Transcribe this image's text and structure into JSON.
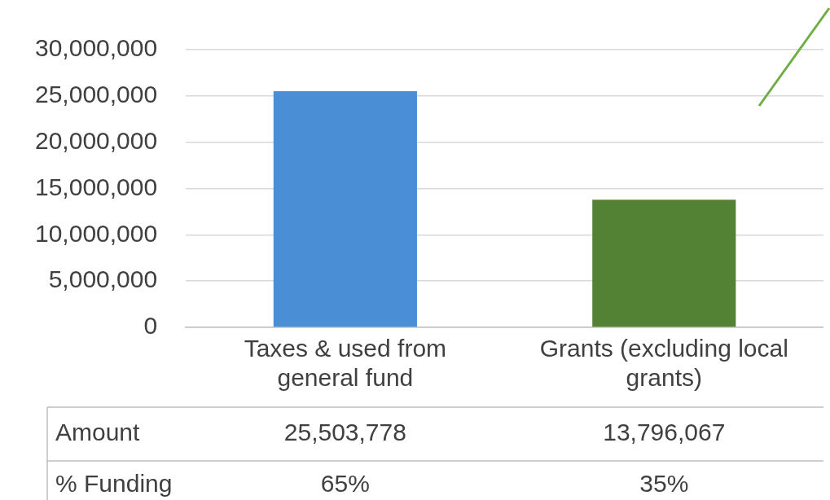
{
  "chart_data": {
    "type": "bar",
    "categories": [
      "Taxes & used from general fund",
      "Grants (excluding local grants)"
    ],
    "values": [
      25503778,
      13796067
    ],
    "colors": [
      "#4a8fd6",
      "#548235"
    ],
    "value_labels": [
      "25,503,778",
      "13,796,067"
    ],
    "ylim": [
      0,
      30000000
    ],
    "yticks": [
      0,
      {
        "value": 5000000,
        "label": "5,000,000"
      },
      {
        "value": 10000000,
        "label": "10,000,000"
      },
      {
        "value": 15000000,
        "label": "15,000,000"
      },
      {
        "value": 20000000,
        "label": "20,000,000"
      },
      {
        "value": 25000000,
        "label": "25,000,000"
      },
      {
        "value": 30000000,
        "label": "30,000,000"
      }
    ],
    "grid": "y",
    "legend": false,
    "annotations": [
      "Amount",
      "% Funding",
      "65%",
      "35%"
    ]
  }
}
